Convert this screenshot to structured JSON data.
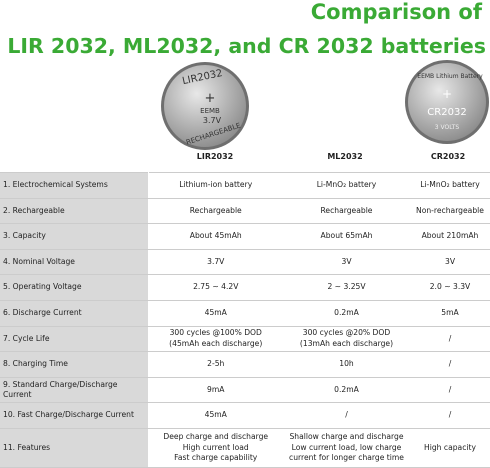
{
  "header": {
    "title_line1": "Comparison of",
    "title_line2": "LIR 2032, ML2032, and CR 2032 batteries"
  },
  "batteries": [
    {
      "name": "LIR2032",
      "markings": [
        "LIR2032",
        "EEMB",
        "3.7V",
        "RECHARGEABLE"
      ]
    },
    {
      "name": "ML2032"
    },
    {
      "name": "CR2032",
      "markings": [
        "EEMB Lithium Battery",
        "CR2032",
        "3 VOLTS"
      ]
    }
  ],
  "table": {
    "rows": [
      [
        "1. Electrochemical Systems",
        "Lithium-ion battery",
        "Li-MnO₂ battery",
        "Li-MnO₂ battery"
      ],
      [
        "2. Rechargeable",
        "Rechargeable",
        "Rechargeable",
        "Non-rechargeable"
      ],
      [
        "3. Capacity",
        "About 45mAh",
        "About 65mAh",
        "About 210mAh"
      ],
      [
        "4. Nominal Voltage",
        "3.7V",
        "3V",
        "3V"
      ],
      [
        "5. Operating Voltage",
        "2.75 ~ 4.2V",
        "2 ~ 3.25V",
        "2.0 ~ 3.3V"
      ],
      [
        "6. Discharge Current",
        "45mA",
        "0.2mA",
        "5mA"
      ],
      [
        "7. Cycle Life",
        "300 cycles @100% DOD\n(45mAh each discharge)",
        "300 cycles @20% DOD\n(13mAh each discharge)",
        "/"
      ],
      [
        "8. Charging Time",
        "2-5h",
        "10h",
        "/"
      ],
      [
        "9. Standard Charge/Discharge Current",
        "9mA",
        "0.2mA",
        "/"
      ],
      [
        "10. Fast Charge/Discharge Current",
        "45mA",
        "/",
        "/"
      ],
      [
        "11. Features",
        "Deep charge and discharge\nHigh current load\nFast charge capability",
        "Shallow charge and discharge\nLow current load, low charge\ncurrent for longer charge time",
        "High capacity"
      ]
    ]
  }
}
